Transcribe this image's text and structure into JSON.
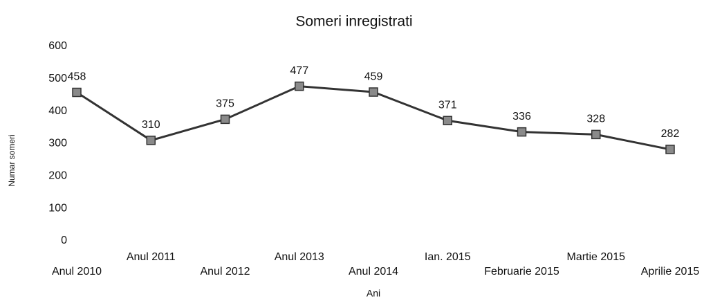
{
  "chart_data": {
    "type": "line",
    "title": "Someri inregistrati",
    "x_label": "Ani",
    "y_label": "Numar someri",
    "categories": [
      "Anul 2010",
      "Anul 2011",
      "Anul 2012",
      "Anul 2013",
      "Anul 2014",
      "Ian. 2015",
      "Februarie 2015",
      "Martie 2015",
      "Aprilie 2015"
    ],
    "values": [
      458,
      310,
      375,
      477,
      459,
      371,
      336,
      328,
      282
    ],
    "color": "#333333",
    "marker_color": "#8a8a8a",
    "ylim": [
      0,
      600
    ],
    "yticks": [
      0,
      100,
      200,
      300,
      400,
      500,
      600
    ],
    "grid": false
  }
}
